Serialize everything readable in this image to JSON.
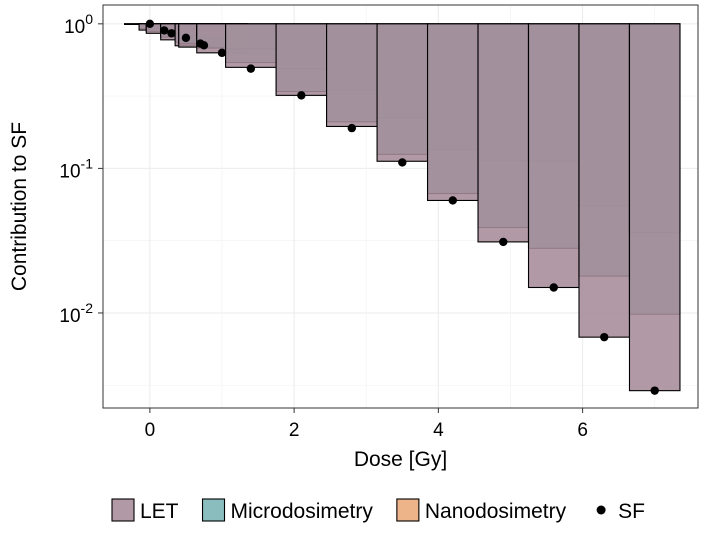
{
  "chart_data": {
    "type": "bar",
    "subtype": "stacked-log-bar-with-points",
    "xlabel": "Dose [Gy]",
    "ylabel": "Contribution to SF",
    "xlim": [
      -0.65,
      7.6
    ],
    "ylim": [
      0.0022,
      1.35
    ],
    "yscale": "log",
    "grid": true,
    "x_ticks": [
      0,
      2,
      4,
      6
    ],
    "y_ticks": [
      {
        "value": 1,
        "base": "10",
        "exp": "0"
      },
      {
        "value": 0.1,
        "base": "10",
        "exp": "-1"
      },
      {
        "value": 0.01,
        "base": "10",
        "exp": "-2"
      }
    ],
    "bar_width": 0.7,
    "doses": [
      0.0,
      0.2,
      0.3,
      0.5,
      0.7,
      0.75,
      1.0,
      1.4,
      2.1,
      2.8,
      3.5,
      4.2,
      4.9,
      5.6,
      6.3,
      7.0
    ],
    "series": [
      {
        "name": "LET",
        "color": "#a68b99",
        "values": [
          1.0,
          0.905,
          0.86,
          0.775,
          0.705,
          0.69,
          0.63,
          0.5,
          0.32,
          0.195,
          0.112,
          0.06,
          0.031,
          0.015,
          0.0068,
          0.0029
        ]
      },
      {
        "name": "Microdosimetry",
        "color": "#79b4b5",
        "values": [
          1.0,
          0.925,
          0.885,
          0.81,
          0.745,
          0.73,
          0.68,
          0.54,
          0.34,
          0.21,
          0.125,
          0.067,
          0.039,
          0.028,
          0.018,
          0.0098
        ]
      },
      {
        "name": "Nanodosimetry",
        "color": "#eaaa7a",
        "values": [
          1.0,
          0.96,
          0.935,
          0.885,
          0.845,
          0.835,
          0.8,
          0.67,
          0.49,
          0.35,
          0.225,
          0.135,
          0.113,
          0.112,
          0.055,
          0.036
        ]
      }
    ],
    "overlap_color": "#e07b3a",
    "points": {
      "name": "SF",
      "color": "#000000",
      "x": [
        0.0,
        0.2,
        0.3,
        0.5,
        0.7,
        0.75,
        1.0,
        1.4,
        2.1,
        2.8,
        3.5,
        4.2,
        4.9,
        5.6,
        6.3,
        7.0
      ],
      "y": [
        1.0,
        0.9,
        0.86,
        0.8,
        0.73,
        0.71,
        0.63,
        0.49,
        0.32,
        0.19,
        0.11,
        0.06,
        0.031,
        0.015,
        0.0068,
        0.0029
      ]
    },
    "legend": {
      "position": "bottom",
      "items": [
        {
          "label": "LET",
          "kind": "box",
          "color": "#a68b99"
        },
        {
          "label": "Microdosimetry",
          "kind": "box",
          "color": "#79b4b5"
        },
        {
          "label": "Nanodosimetry",
          "kind": "box",
          "color": "#eaaa7a"
        },
        {
          "label": "SF",
          "kind": "point",
          "color": "#000000"
        }
      ]
    }
  }
}
